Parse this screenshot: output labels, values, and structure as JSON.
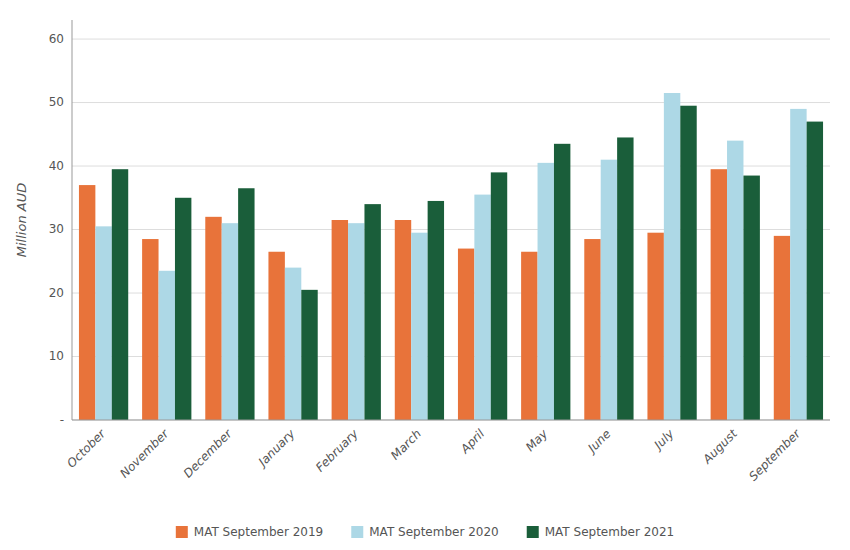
{
  "chart_data": {
    "type": "bar",
    "ylabel": "Million AUD",
    "categories": [
      "October",
      "November",
      "December",
      "January",
      "February",
      "March",
      "April",
      "May",
      "June",
      "July",
      "August",
      "September"
    ],
    "series": [
      {
        "name": "MAT September 2019",
        "color": "#E8733A",
        "values": [
          37.0,
          28.5,
          32.0,
          26.5,
          31.5,
          31.5,
          27.0,
          26.5,
          28.5,
          29.5,
          39.5,
          29.0
        ]
      },
      {
        "name": "MAT September 2020",
        "color": "#ADD8E6",
        "values": [
          30.5,
          23.5,
          31.0,
          24.0,
          31.0,
          29.5,
          35.5,
          40.5,
          41.0,
          51.5,
          44.0,
          49.0
        ]
      },
      {
        "name": "MAT September 2021",
        "color": "#1A5E3A",
        "values": [
          39.5,
          35.0,
          36.5,
          20.5,
          34.0,
          34.5,
          39.0,
          43.5,
          44.5,
          49.5,
          38.5,
          47.0
        ]
      }
    ],
    "ylim": [
      0,
      63
    ],
    "yticks": [
      {
        "value": 0,
        "label": "-"
      },
      10,
      20,
      30,
      40,
      50,
      60
    ],
    "grid": true,
    "legend": "bottom"
  }
}
